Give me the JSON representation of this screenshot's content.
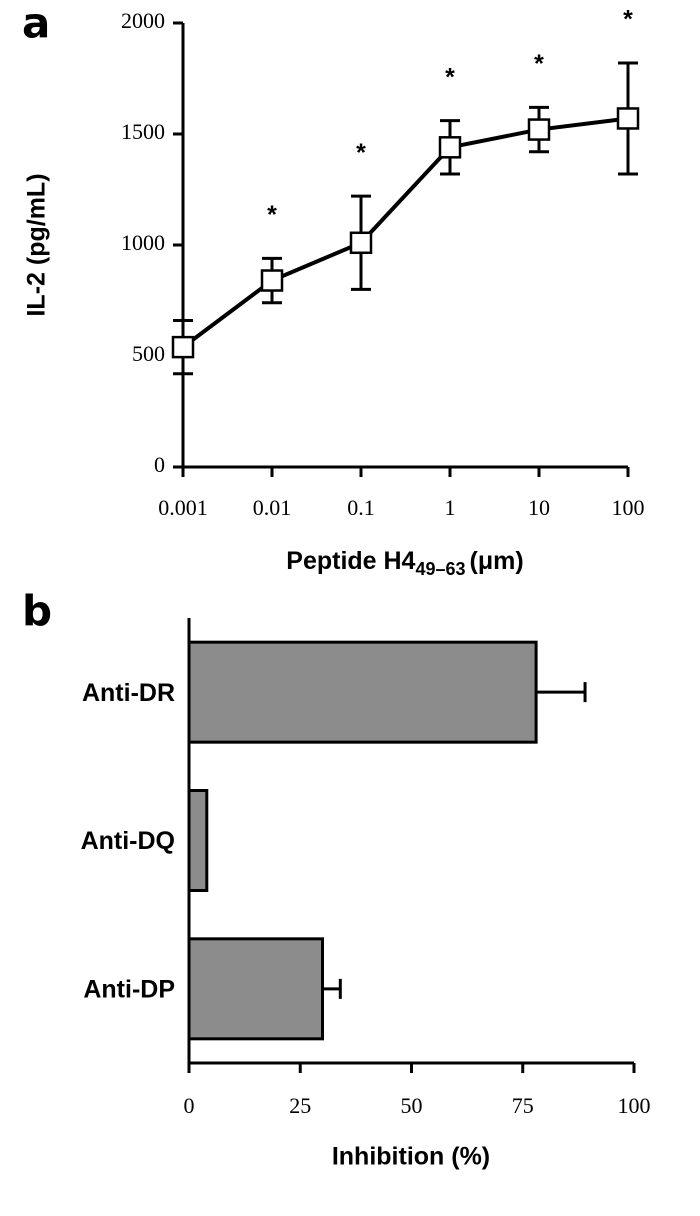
{
  "chart_data": [
    {
      "type": "line",
      "panel_label": "a",
      "ylabel": "IL-2 (pg/mL)",
      "xlabel": "Peptide H4",
      "xlabel_subscript": "49–63",
      "xlabel_unit": "(μm)",
      "x": [
        0.001,
        0.01,
        0.1,
        1,
        10,
        100
      ],
      "log_x": true,
      "xlim": [
        0.001,
        100
      ],
      "xticks": [
        0.001,
        0.01,
        0.1,
        1,
        10,
        100
      ],
      "ylim": [
        0,
        2000
      ],
      "yticks": [
        0,
        500,
        1000,
        1500,
        2000
      ],
      "series": [
        {
          "color": "#000000",
          "values": [
            540,
            840,
            1010,
            1440,
            1520,
            1570
          ],
          "errors": [
            120,
            100,
            210,
            120,
            100,
            250
          ]
        }
      ],
      "markers": [
        null,
        "*",
        "*",
        "*",
        "*",
        "*"
      ]
    },
    {
      "type": "hbar",
      "panel_label": "b",
      "xlabel": "Inhibition (%)",
      "categories": [
        "Anti-DR",
        "Anti-DQ",
        "Anti-DP"
      ],
      "values": [
        78,
        4,
        30
      ],
      "errors": [
        11,
        null,
        4
      ],
      "color": "#8c8c8c",
      "xlim": [
        0,
        100
      ],
      "xticks": [
        0,
        25,
        50,
        75,
        100
      ]
    }
  ]
}
